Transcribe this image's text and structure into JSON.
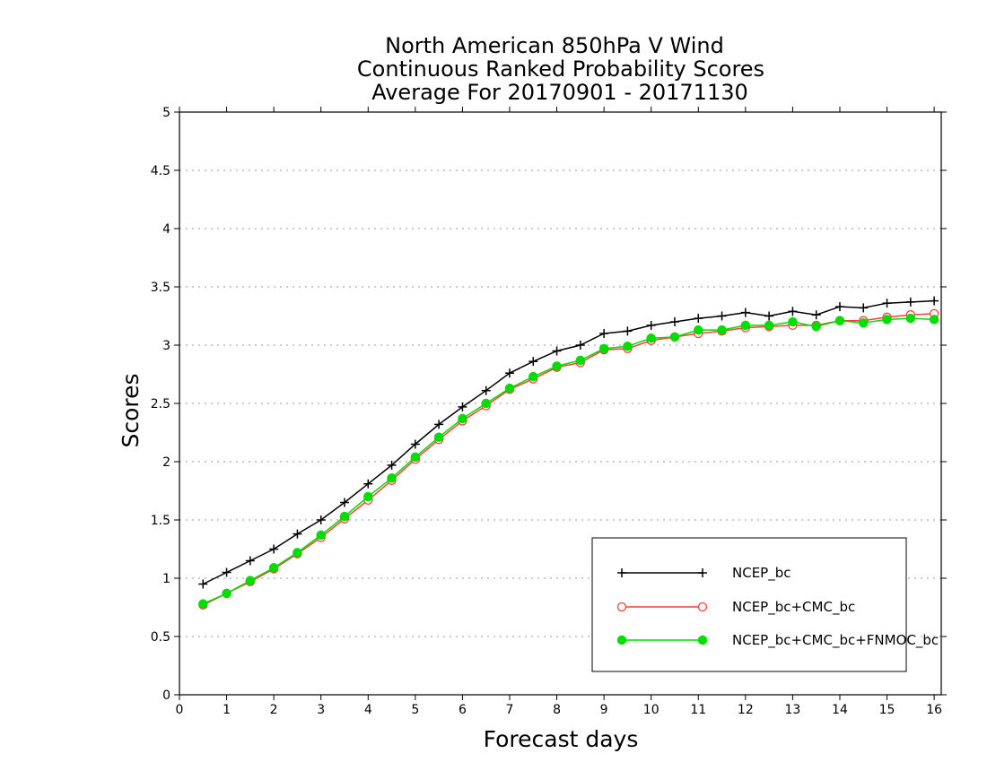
{
  "chart_data": {
    "type": "line",
    "title": [
      "North American 850hPa V Wind",
      "Continuous Ranked Probability Scores",
      "Average For 20170901 - 20171130"
    ],
    "xlabel": "Forecast days",
    "ylabel": "Scores",
    "xlim": [
      0,
      16.15
    ],
    "ylim": [
      0,
      5
    ],
    "x_ticks": [
      "0",
      "1",
      "2",
      "3",
      "4",
      "5",
      "6",
      "7",
      "8",
      "9",
      "10",
      "11",
      "12",
      "13",
      "14",
      "15",
      "16"
    ],
    "y_ticks": [
      "0",
      "0.5",
      "1",
      "1.5",
      "2",
      "2.5",
      "3",
      "3.5",
      "4",
      "4.5",
      "5"
    ],
    "grid": "horizontal dotted",
    "legend_position": "lower-right",
    "x": [
      0.5,
      1,
      1.5,
      2,
      2.5,
      3,
      3.5,
      4,
      4.5,
      5,
      5.5,
      6,
      6.5,
      7,
      7.5,
      8,
      8.5,
      9,
      9.5,
      10,
      10.5,
      11,
      11.5,
      12,
      12.5,
      13,
      13.5,
      14,
      14.5,
      15,
      15.5,
      16
    ],
    "series": [
      {
        "name": "NCEP_bc",
        "color": "#000000",
        "marker": "plus",
        "values": [
          0.95,
          1.05,
          1.15,
          1.25,
          1.38,
          1.5,
          1.65,
          1.81,
          1.97,
          2.15,
          2.32,
          2.47,
          2.61,
          2.76,
          2.86,
          2.95,
          3.0,
          3.1,
          3.12,
          3.17,
          3.2,
          3.23,
          3.25,
          3.28,
          3.25,
          3.29,
          3.26,
          3.33,
          3.32,
          3.36,
          3.37,
          3.38
        ]
      },
      {
        "name": "NCEP_bc+CMC_bc",
        "color": "#ff3b3b",
        "marker": "open-circle",
        "values": [
          0.77,
          0.87,
          0.97,
          1.08,
          1.21,
          1.35,
          1.51,
          1.67,
          1.84,
          2.02,
          2.19,
          2.35,
          2.48,
          2.62,
          2.71,
          2.81,
          2.85,
          2.96,
          2.97,
          3.04,
          3.07,
          3.1,
          3.12,
          3.15,
          3.16,
          3.17,
          3.17,
          3.21,
          3.21,
          3.24,
          3.26,
          3.27
        ]
      },
      {
        "name": "NCEP_bc+CMC_bc+FNMOC_bc",
        "color": "#00dd00",
        "marker": "filled-circle",
        "values": [
          0.78,
          0.87,
          0.98,
          1.09,
          1.22,
          1.37,
          1.53,
          1.7,
          1.86,
          2.04,
          2.21,
          2.37,
          2.5,
          2.63,
          2.73,
          2.82,
          2.87,
          2.97,
          2.99,
          3.06,
          3.07,
          3.13,
          3.13,
          3.17,
          3.17,
          3.2,
          3.16,
          3.21,
          3.19,
          3.22,
          3.23,
          3.22
        ]
      }
    ]
  }
}
